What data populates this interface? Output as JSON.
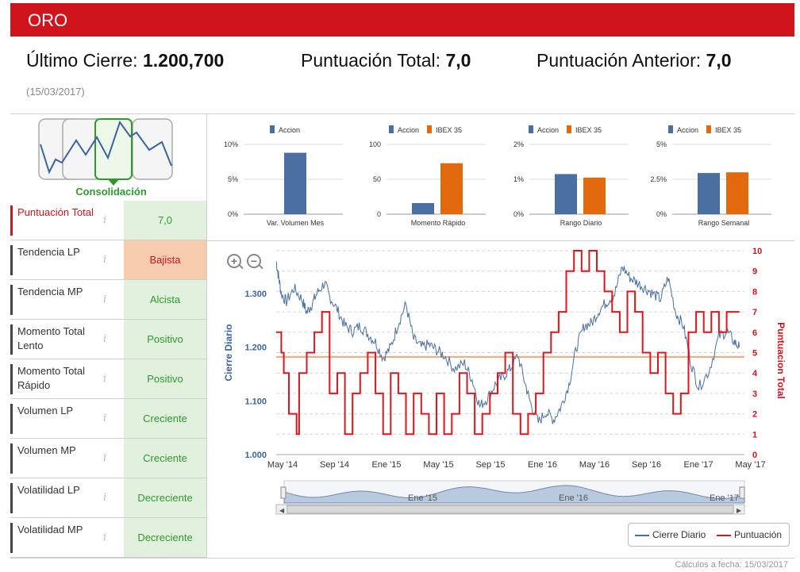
{
  "title": "ORO",
  "header": {
    "ultimo_label": "Último Cierre:",
    "ultimo_value": "1.200,700",
    "puntuacion_label": "Puntuación Total:",
    "puntuacion_value": "7,0",
    "anterior_label": "Puntuación Anterior:",
    "anterior_value": "7,0",
    "date": "(15/03/2017)"
  },
  "pattern": {
    "label": "Consolidación",
    "icon": "consolidation-pattern-icon"
  },
  "indicators": [
    {
      "label": "Puntuación Total",
      "value": "7,0",
      "style": "green",
      "highlight": true
    },
    {
      "label": "Tendencia LP",
      "value": "Bajista",
      "style": "orange"
    },
    {
      "label": "Tendencia MP",
      "value": "Alcista",
      "style": "green"
    },
    {
      "label": "Momento Total Lento",
      "value": "Positivo",
      "style": "green"
    },
    {
      "label": "Momento Total Rápido",
      "value": "Positivo",
      "style": "green"
    },
    {
      "label": "Volumen LP",
      "value": "Creciente",
      "style": "green"
    },
    {
      "label": "Volumen MP",
      "value": "Creciente",
      "style": "green"
    },
    {
      "label": "Volatilidad LP",
      "value": "Decreciente",
      "style": "green"
    },
    {
      "label": "Volatilidad MP",
      "value": "Decreciente",
      "style": "green"
    }
  ],
  "info_icon": "i",
  "colors": {
    "accion": "#4a6fa0",
    "ibex": "#e3690f",
    "brand_red": "#d0141c",
    "cierre": "#4a6fa0",
    "puntuacion": "#e0141c",
    "reference_line": "#f0a878"
  },
  "chart_data": [
    {
      "type": "bar",
      "categories": [
        "Var. Volumen Mes"
      ],
      "series": [
        {
          "name": "Accion",
          "values": [
            8.8
          ]
        }
      ],
      "ytick_labels": [
        "10%",
        "5%",
        "0%"
      ],
      "ylim": [
        0,
        10
      ]
    },
    {
      "type": "bar",
      "categories": [
        "Momento Rápido"
      ],
      "series": [
        {
          "name": "Accion",
          "values": [
            16
          ]
        },
        {
          "name": "IBEX 35",
          "values": [
            73
          ]
        }
      ],
      "ytick_labels": [
        "100",
        "50",
        "0"
      ],
      "ylim": [
        0,
        100
      ]
    },
    {
      "type": "bar",
      "categories": [
        "Rango Diario"
      ],
      "series": [
        {
          "name": "Accion",
          "values": [
            1.15
          ]
        },
        {
          "name": "IBEX 35",
          "values": [
            1.05
          ]
        }
      ],
      "ytick_labels": [
        "2%",
        "1%",
        "0%"
      ],
      "ylim": [
        0,
        2
      ]
    },
    {
      "type": "bar",
      "categories": [
        "Rango Semanal"
      ],
      "series": [
        {
          "name": "Accion",
          "values": [
            2.95
          ]
        },
        {
          "name": "IBEX 35",
          "values": [
            3.0
          ]
        }
      ],
      "ytick_labels": [
        "5%",
        "2.5%",
        "0%"
      ],
      "ylim": [
        0,
        5
      ]
    },
    {
      "type": "line",
      "x_tick_labels": [
        "May '14",
        "Sep '14",
        "Ene '15",
        "May '15",
        "Sep '15",
        "Ene '16",
        "May '16",
        "Sep '16",
        "Ene '17",
        "May '17"
      ],
      "ylabel_left": "Cierre Diario",
      "ylabel_right": "Puntuacion Total",
      "ytick_left": [
        "1.300",
        "1.200",
        "1.100",
        "1.000"
      ],
      "ytick_right": [
        "10",
        "9",
        "8",
        "7",
        "6",
        "5",
        "4",
        "3",
        "2",
        "1",
        "0"
      ],
      "ylim_left": [
        1000,
        1380
      ],
      "ylim_right": [
        0,
        10
      ],
      "reference_line": 1182,
      "series": [
        {
          "name": "Cierre Diario",
          "axis": "left",
          "x": [
            0,
            0.05,
            0.1,
            0.2,
            0.35,
            0.5,
            0.6,
            0.7,
            0.8,
            0.95,
            1.05,
            1.2,
            1.35,
            1.5,
            1.65,
            1.8,
            1.95,
            2.1,
            2.25,
            2.4,
            2.55,
            2.7,
            2.85,
            3.0,
            3.15,
            3.3,
            3.5,
            3.7,
            3.85,
            4.0,
            4.15,
            4.3,
            4.45,
            4.6,
            4.75,
            4.9,
            5.0,
            5.15,
            5.3,
            5.45,
            5.6,
            5.75,
            5.9,
            6.05,
            6.2,
            6.35,
            6.5,
            6.65,
            6.8,
            6.95,
            7.1,
            7.25,
            7.4,
            7.55,
            7.7,
            7.85,
            8.0,
            8.15,
            8.3,
            8.5,
            8.7,
            8.85,
            9.0,
            9.1
          ],
          "y": [
            1360,
            1330,
            1300,
            1285,
            1310,
            1290,
            1265,
            1280,
            1300,
            1320,
            1295,
            1270,
            1240,
            1230,
            1240,
            1225,
            1210,
            1180,
            1200,
            1245,
            1280,
            1215,
            1200,
            1205,
            1195,
            1185,
            1160,
            1170,
            1140,
            1090,
            1105,
            1130,
            1145,
            1160,
            1185,
            1130,
            1095,
            1060,
            1080,
            1065,
            1090,
            1130,
            1200,
            1240,
            1245,
            1270,
            1285,
            1300,
            1350,
            1330,
            1320,
            1310,
            1300,
            1290,
            1330,
            1265,
            1240,
            1170,
            1125,
            1155,
            1220,
            1230,
            1210,
            1200
          ]
        },
        {
          "name": "Puntuación",
          "axis": "right",
          "x": [
            0,
            0.1,
            0.15,
            0.25,
            0.4,
            0.45,
            0.6,
            0.75,
            0.9,
            1.05,
            1.2,
            1.35,
            1.5,
            1.65,
            1.8,
            1.95,
            2.1,
            2.25,
            2.4,
            2.55,
            2.7,
            2.85,
            3.0,
            3.15,
            3.3,
            3.45,
            3.6,
            3.75,
            3.9,
            4.05,
            4.2,
            4.35,
            4.5,
            4.65,
            4.8,
            4.95,
            5.1,
            5.25,
            5.4,
            5.55,
            5.7,
            5.85,
            6.0,
            6.15,
            6.3,
            6.45,
            6.6,
            6.75,
            6.9,
            7.05,
            7.2,
            7.35,
            7.5,
            7.65,
            7.8,
            7.95,
            8.1,
            8.25,
            8.4,
            8.55,
            8.7,
            8.85,
            9.0
          ],
          "y": [
            6,
            5,
            4,
            2,
            1,
            4,
            5,
            6,
            7,
            3,
            4,
            1,
            3,
            4,
            5,
            3,
            1,
            4,
            3,
            1,
            3,
            2,
            1,
            3,
            1,
            2,
            4,
            3,
            1,
            2,
            3,
            4,
            5,
            2,
            1,
            2,
            3,
            5,
            6,
            7,
            9,
            10,
            9,
            10,
            9,
            8,
            7,
            6,
            8,
            7,
            5,
            4,
            5,
            3,
            2,
            3,
            6,
            7,
            6,
            7,
            6,
            7,
            7
          ]
        }
      ],
      "navigator": {
        "x_tick_labels": [
          "Ene '15",
          "Ene '16",
          "Ene '17"
        ]
      }
    }
  ],
  "legend": [
    {
      "label": "Cierre Diario"
    },
    {
      "label": "Puntuación"
    }
  ],
  "footer": "Cálculos a fecha: 15/03/2017"
}
